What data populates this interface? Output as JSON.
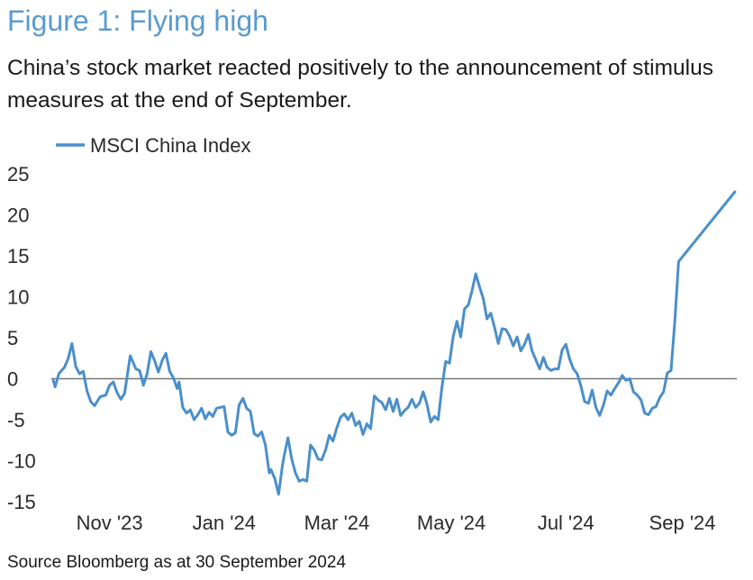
{
  "figure": {
    "title": "Figure 1: Flying high",
    "subtitle": "China’s stock market reacted positively to the announcement of stimulus measures at the end of September.",
    "source": "Source Bloomberg as at 30 September 2024"
  },
  "colors": {
    "title": "#5a9bd0",
    "series": "#4a8fcb",
    "zero_line": "#777777",
    "text": "#1a1a1a"
  },
  "chart_data": {
    "type": "line",
    "title": "Figure 1: Flying high",
    "xlabel": "",
    "ylabel": "",
    "ylim": [
      -15,
      25
    ],
    "yticks": [
      25,
      20,
      15,
      10,
      5,
      0,
      -5,
      -10,
      -15
    ],
    "ytick_labels": [
      "25",
      "20",
      "15",
      "10",
      "5",
      "0",
      "-5",
      "-10",
      "-15"
    ],
    "xlim": [
      "2023-10-01",
      "2024-09-30"
    ],
    "xtick_dates": [
      "2023-11-01",
      "2024-01-01",
      "2024-03-01",
      "2024-05-01",
      "2024-07-01",
      "2024-09-01"
    ],
    "xtick_labels": [
      "Nov '23",
      "Jan '24",
      "Mar '24",
      "May '24",
      "Jul '24",
      "Sep '24"
    ],
    "grid": false,
    "zero_line": true,
    "legend": "top-left",
    "series": [
      {
        "name": "MSCI China Index",
        "points": [
          [
            "2023-10-02",
            -0.2
          ],
          [
            "2023-10-03",
            -1.0
          ],
          [
            "2023-10-05",
            0.6
          ],
          [
            "2023-10-08",
            1.4
          ],
          [
            "2023-10-10",
            2.5
          ],
          [
            "2023-10-12",
            4.3
          ],
          [
            "2023-10-14",
            1.5
          ],
          [
            "2023-10-16",
            0.6
          ],
          [
            "2023-10-18",
            0.9
          ],
          [
            "2023-10-20",
            -1.5
          ],
          [
            "2023-10-22",
            -2.8
          ],
          [
            "2023-10-24",
            -3.3
          ],
          [
            "2023-10-27",
            -2.2
          ],
          [
            "2023-10-30",
            -2.0
          ],
          [
            "2023-11-01",
            -0.8
          ],
          [
            "2023-11-03",
            -0.4
          ],
          [
            "2023-11-05",
            -1.7
          ],
          [
            "2023-11-07",
            -2.5
          ],
          [
            "2023-11-09",
            -1.8
          ],
          [
            "2023-11-12",
            2.8
          ],
          [
            "2023-11-15",
            1.2
          ],
          [
            "2023-11-17",
            1.0
          ],
          [
            "2023-11-19",
            -0.8
          ],
          [
            "2023-11-21",
            0.6
          ],
          [
            "2023-11-23",
            3.3
          ],
          [
            "2023-11-25",
            2.2
          ],
          [
            "2023-11-27",
            0.8
          ],
          [
            "2023-11-29",
            2.2
          ],
          [
            "2023-12-01",
            3.1
          ],
          [
            "2023-12-03",
            0.9
          ],
          [
            "2023-12-05",
            0.1
          ],
          [
            "2023-12-07",
            -1.2
          ],
          [
            "2023-12-08",
            -0.4
          ],
          [
            "2023-12-10",
            -3.5
          ],
          [
            "2023-12-12",
            -4.2
          ],
          [
            "2023-12-14",
            -3.8
          ],
          [
            "2023-12-16",
            -5.0
          ],
          [
            "2023-12-18",
            -4.4
          ],
          [
            "2023-12-20",
            -3.6
          ],
          [
            "2023-12-22",
            -4.9
          ],
          [
            "2023-12-24",
            -4.1
          ],
          [
            "2023-12-26",
            -4.6
          ],
          [
            "2023-12-28",
            -3.6
          ],
          [
            "2024-01-01",
            -3.4
          ],
          [
            "2024-01-03",
            -6.5
          ],
          [
            "2024-01-05",
            -6.9
          ],
          [
            "2024-01-07",
            -6.6
          ],
          [
            "2024-01-09",
            -3.2
          ],
          [
            "2024-01-11",
            -2.4
          ],
          [
            "2024-01-13",
            -3.6
          ],
          [
            "2024-01-15",
            -4.0
          ],
          [
            "2024-01-17",
            -6.7
          ],
          [
            "2024-01-19",
            -7.0
          ],
          [
            "2024-01-21",
            -6.5
          ],
          [
            "2024-01-23",
            -8.1
          ],
          [
            "2024-01-25",
            -11.5
          ],
          [
            "2024-01-26",
            -11.1
          ],
          [
            "2024-01-28",
            -12.2
          ],
          [
            "2024-01-30",
            -14.1
          ],
          [
            "2024-02-01",
            -10.7
          ],
          [
            "2024-02-02",
            -9.4
          ],
          [
            "2024-02-04",
            -7.2
          ],
          [
            "2024-02-06",
            -9.8
          ],
          [
            "2024-02-08",
            -11.5
          ],
          [
            "2024-02-10",
            -12.5
          ],
          [
            "2024-02-12",
            -12.3
          ],
          [
            "2024-02-14",
            -12.5
          ],
          [
            "2024-02-16",
            -8.1
          ],
          [
            "2024-02-18",
            -8.7
          ],
          [
            "2024-02-20",
            -9.8
          ],
          [
            "2024-02-22",
            -9.9
          ],
          [
            "2024-02-24",
            -8.7
          ],
          [
            "2024-02-26",
            -6.9
          ],
          [
            "2024-02-28",
            -7.6
          ],
          [
            "2024-03-01",
            -6.0
          ],
          [
            "2024-03-03",
            -4.7
          ],
          [
            "2024-03-05",
            -4.3
          ],
          [
            "2024-03-07",
            -5.0
          ],
          [
            "2024-03-09",
            -4.2
          ],
          [
            "2024-03-11",
            -5.7
          ],
          [
            "2024-03-13",
            -5.2
          ],
          [
            "2024-03-15",
            -6.8
          ],
          [
            "2024-03-17",
            -5.5
          ],
          [
            "2024-03-19",
            -6.1
          ],
          [
            "2024-03-21",
            -2.1
          ],
          [
            "2024-03-23",
            -2.6
          ],
          [
            "2024-03-25",
            -2.9
          ],
          [
            "2024-03-27",
            -3.8
          ],
          [
            "2024-03-29",
            -2.4
          ],
          [
            "2024-03-31",
            -4.0
          ],
          [
            "2024-04-02",
            -2.5
          ],
          [
            "2024-04-04",
            -4.5
          ],
          [
            "2024-04-06",
            -3.9
          ],
          [
            "2024-04-08",
            -3.5
          ],
          [
            "2024-04-10",
            -2.5
          ],
          [
            "2024-04-12",
            -3.5
          ],
          [
            "2024-04-14",
            -3.0
          ],
          [
            "2024-04-16",
            -1.6
          ],
          [
            "2024-04-18",
            -3.1
          ],
          [
            "2024-04-20",
            -5.3
          ],
          [
            "2024-04-22",
            -4.6
          ],
          [
            "2024-04-24",
            -5.0
          ],
          [
            "2024-04-26",
            -1.0
          ],
          [
            "2024-04-28",
            2.1
          ],
          [
            "2024-04-30",
            1.9
          ],
          [
            "2024-05-02",
            5.2
          ],
          [
            "2024-05-04",
            7.0
          ],
          [
            "2024-05-06",
            5.1
          ],
          [
            "2024-05-08",
            8.5
          ],
          [
            "2024-05-10",
            9.0
          ],
          [
            "2024-05-12",
            10.7
          ],
          [
            "2024-05-14",
            12.8
          ],
          [
            "2024-05-16",
            11.2
          ],
          [
            "2024-05-18",
            9.8
          ],
          [
            "2024-05-20",
            7.3
          ],
          [
            "2024-05-22",
            8.0
          ],
          [
            "2024-05-24",
            6.3
          ],
          [
            "2024-05-26",
            4.3
          ],
          [
            "2024-05-28",
            6.1
          ],
          [
            "2024-05-30",
            6.0
          ],
          [
            "2024-06-01",
            5.2
          ],
          [
            "2024-06-03",
            4.0
          ],
          [
            "2024-06-05",
            5.1
          ],
          [
            "2024-06-07",
            3.4
          ],
          [
            "2024-06-09",
            4.2
          ],
          [
            "2024-06-11",
            5.4
          ],
          [
            "2024-06-13",
            3.4
          ],
          [
            "2024-06-15",
            2.3
          ],
          [
            "2024-06-17",
            1.2
          ],
          [
            "2024-06-19",
            2.6
          ],
          [
            "2024-06-21",
            1.4
          ],
          [
            "2024-06-23",
            1.0
          ],
          [
            "2024-06-25",
            1.2
          ],
          [
            "2024-06-27",
            1.2
          ],
          [
            "2024-06-29",
            3.5
          ],
          [
            "2024-07-01",
            4.2
          ],
          [
            "2024-07-03",
            2.4
          ],
          [
            "2024-07-05",
            1.2
          ],
          [
            "2024-07-07",
            0.6
          ],
          [
            "2024-07-09",
            -0.9
          ],
          [
            "2024-07-11",
            -2.8
          ],
          [
            "2024-07-13",
            -3.0
          ],
          [
            "2024-07-15",
            -1.4
          ],
          [
            "2024-07-17",
            -3.5
          ],
          [
            "2024-07-19",
            -4.5
          ],
          [
            "2024-07-21",
            -3.2
          ],
          [
            "2024-07-23",
            -1.5
          ],
          [
            "2024-07-25",
            -2.0
          ],
          [
            "2024-07-27",
            -1.2
          ],
          [
            "2024-07-29",
            -0.5
          ],
          [
            "2024-07-31",
            0.4
          ],
          [
            "2024-08-02",
            -0.2
          ],
          [
            "2024-08-04",
            0.0
          ],
          [
            "2024-08-06",
            -1.6
          ],
          [
            "2024-08-08",
            -2.0
          ],
          [
            "2024-08-10",
            -2.6
          ],
          [
            "2024-08-12",
            -4.2
          ],
          [
            "2024-08-14",
            -4.4
          ],
          [
            "2024-08-16",
            -3.6
          ],
          [
            "2024-08-18",
            -3.4
          ],
          [
            "2024-08-20",
            -2.3
          ],
          [
            "2024-08-22",
            -1.6
          ],
          [
            "2024-08-24",
            0.7
          ],
          [
            "2024-08-26",
            1.0
          ],
          [
            "2024-08-28",
            7.0
          ],
          [
            "2024-08-30",
            14.3
          ],
          [
            "2024-09-29",
            22.8
          ]
        ]
      }
    ]
  }
}
